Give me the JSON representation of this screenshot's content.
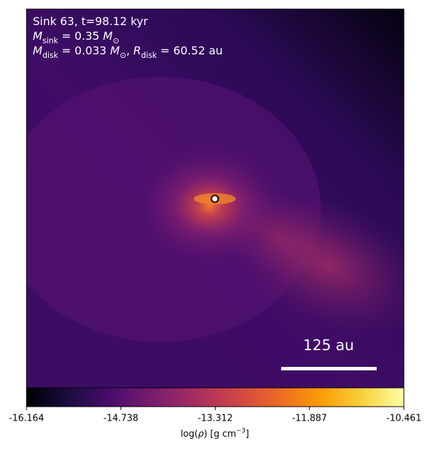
{
  "chart_data": {
    "type": "image-map",
    "annotations": [
      [
        {
          "text": "Sink 63, t=98.12 kyr"
        }
      ],
      [
        {
          "text": "M",
          "style": "italic"
        },
        {
          "text": "sink",
          "style": "sub"
        },
        {
          "text": " = 0.35 "
        },
        {
          "text": "M",
          "style": "italic"
        },
        {
          "text": "⊙",
          "style": "sub"
        }
      ],
      [
        {
          "text": "M",
          "style": "italic"
        },
        {
          "text": "disk",
          "style": "sub"
        },
        {
          "text": " = 0.033 "
        },
        {
          "text": "M",
          "style": "italic"
        },
        {
          "text": "⊙",
          "style": "sub"
        },
        {
          "text": ", "
        },
        {
          "text": "R",
          "style": "italic"
        },
        {
          "text": "disk",
          "style": "sub"
        },
        {
          "text": " = 60.52 au"
        }
      ]
    ],
    "scale_bar": {
      "label": "125 au"
    },
    "colorbar": {
      "label": [
        {
          "text": "log("
        },
        {
          "text": "ρ",
          "style": "italic"
        },
        {
          "text": ") [g cm"
        },
        {
          "text": "−3",
          "style": "sup"
        },
        {
          "text": "]"
        }
      ],
      "xlim": [
        -16.164,
        -10.461
      ],
      "xticks": [
        -16.164,
        -14.738,
        -13.312,
        -11.887,
        -10.461
      ],
      "colormap": [
        "#000004",
        "#1b0c41",
        "#4a0c6b",
        "#781c6d",
        "#a52c60",
        "#cf4446",
        "#ed6925",
        "#fb9b06",
        "#f7d13d",
        "#fcffa4"
      ]
    }
  }
}
